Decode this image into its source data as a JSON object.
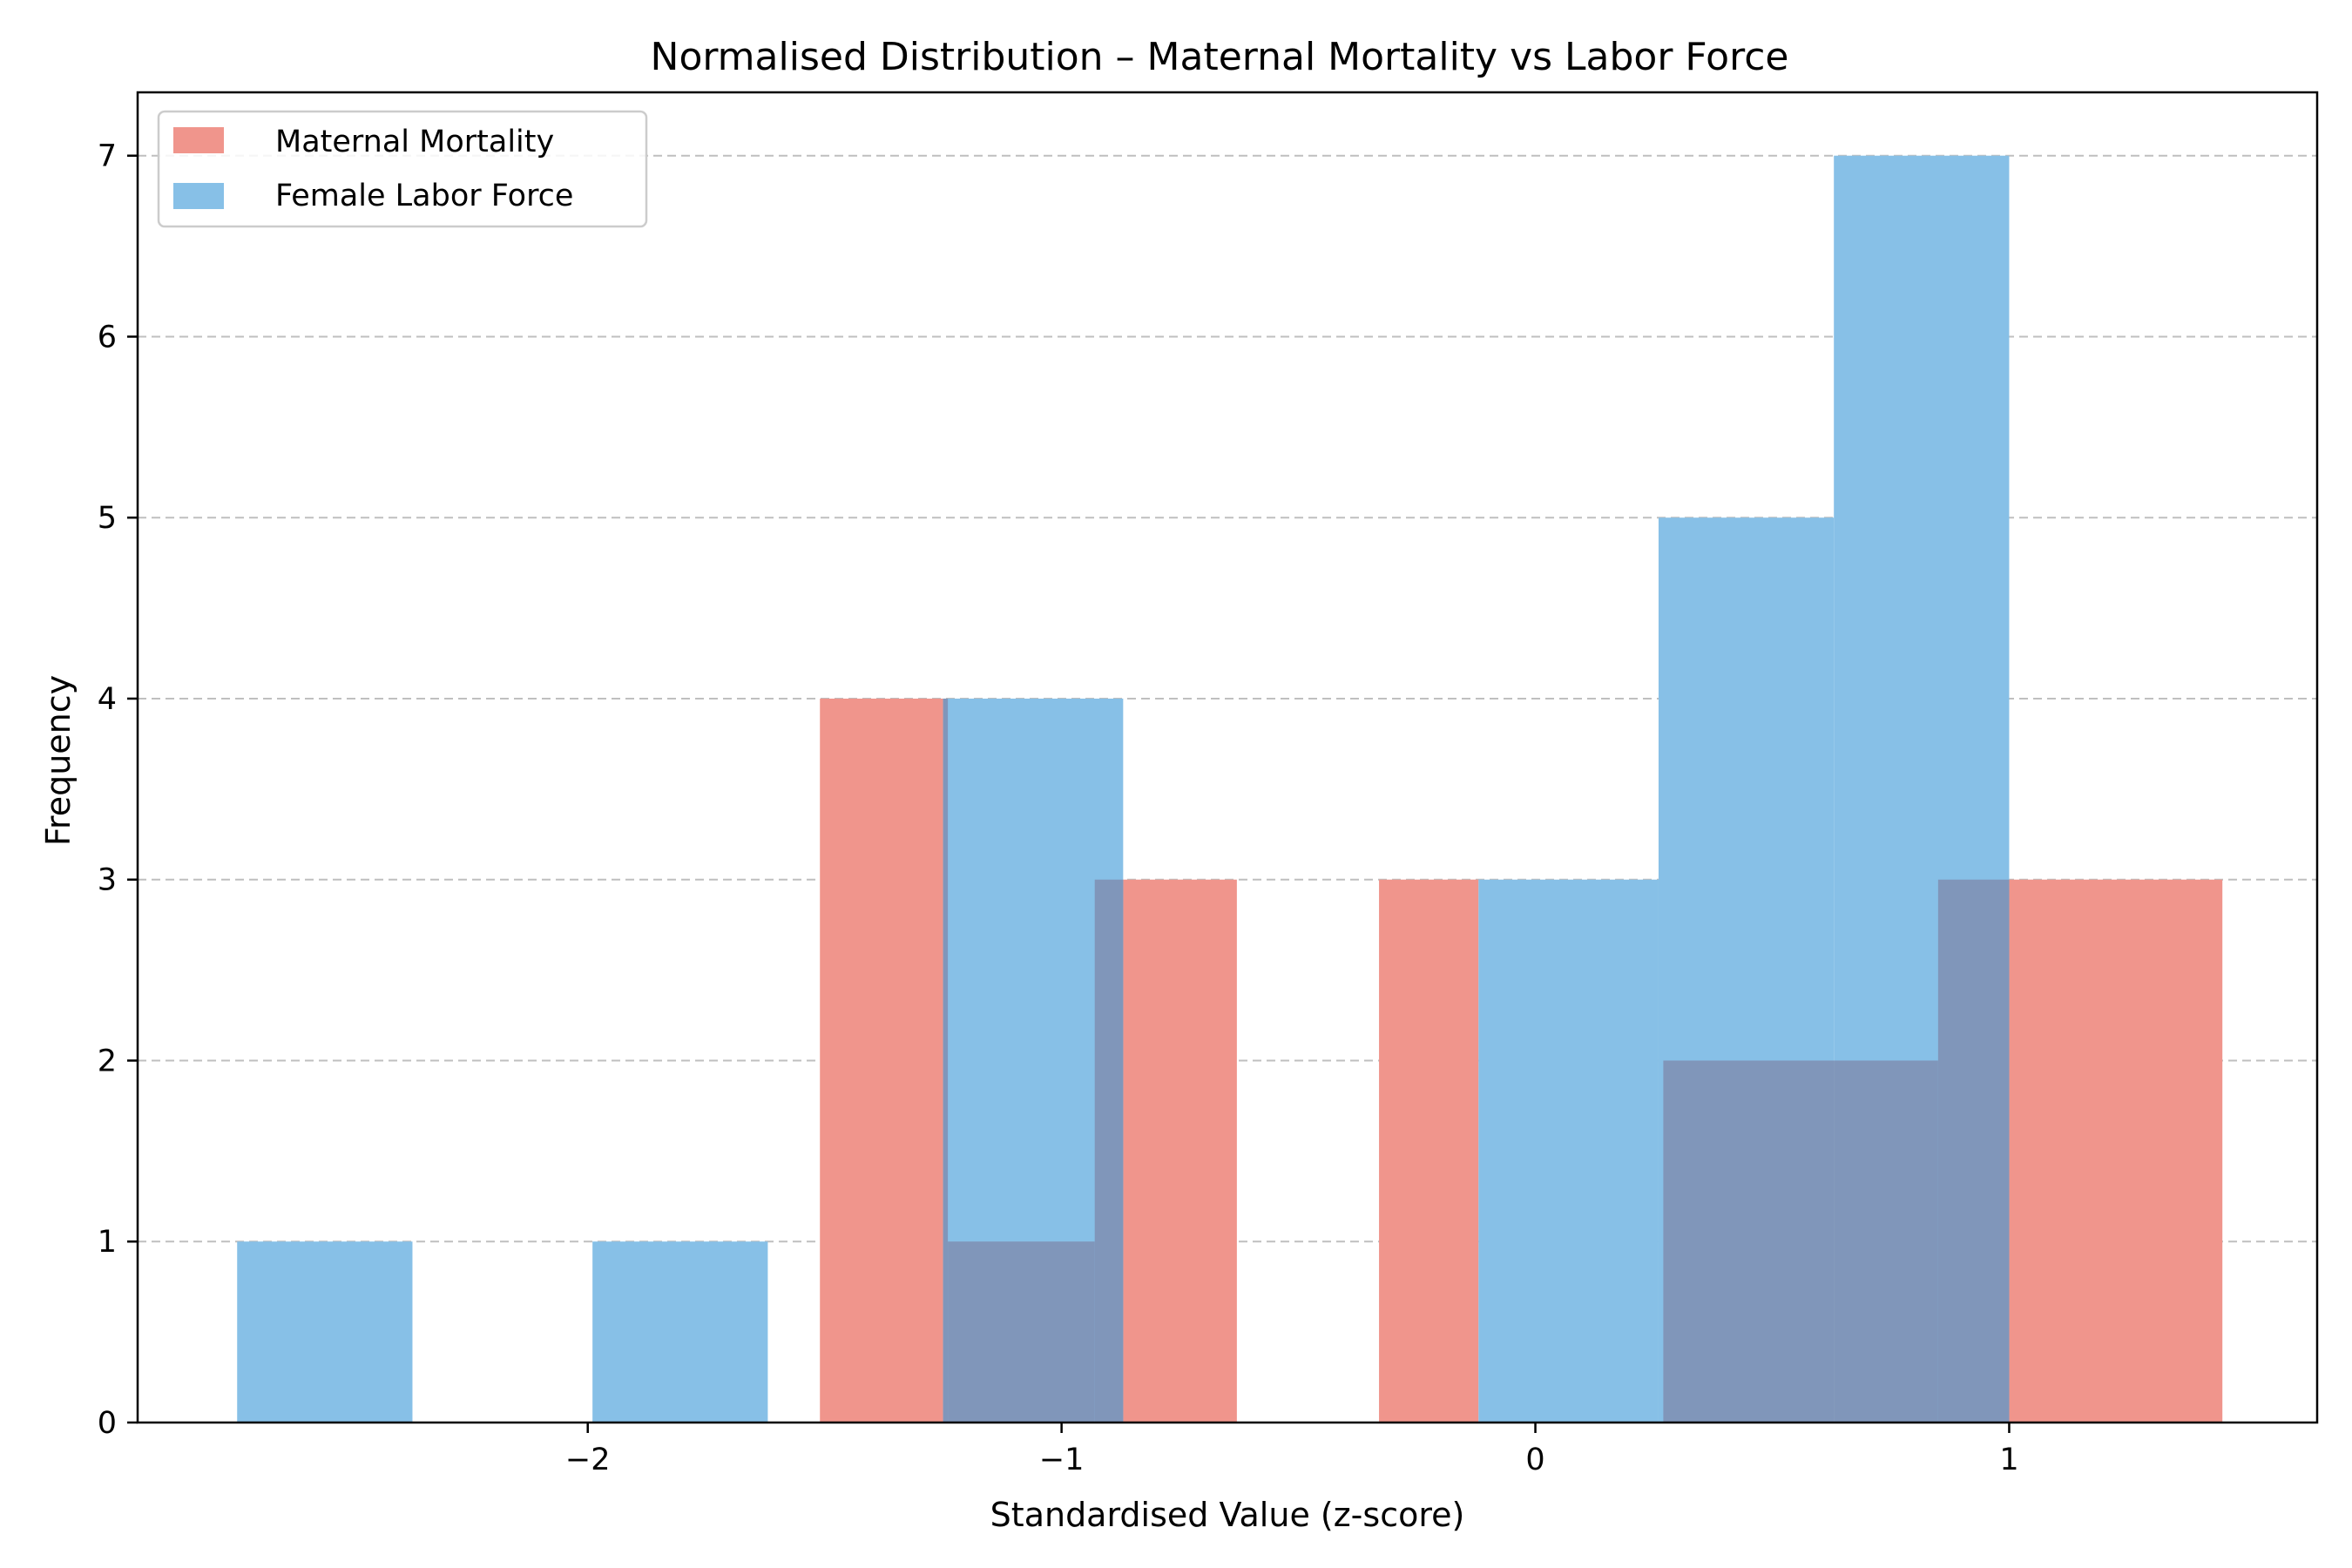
{
  "chart_data": {
    "type": "bar",
    "title": "Normalised Distribution – Maternal Mortality vs Labor Force",
    "xlabel": "Standardised Value (z-score)",
    "ylabel": "Frequency",
    "xlim": [
      -2.95,
      1.65
    ],
    "ylim": [
      0,
      7.35
    ],
    "x_ticks": [
      -2,
      -1,
      0,
      1
    ],
    "x_tick_labels": [
      "−2",
      "−1",
      "0",
      "1"
    ],
    "y_ticks": [
      0,
      1,
      2,
      3,
      4,
      5,
      6,
      7
    ],
    "y_tick_labels": [
      "0",
      "1",
      "2",
      "3",
      "4",
      "5",
      "6",
      "7"
    ],
    "grid": "y-dashed",
    "legend_position": "top-left",
    "overlap_color": "#8096BA",
    "series": [
      {
        "name": "Maternal Mortality",
        "color": "#F0958C",
        "bins": [
          {
            "start": -1.51,
            "end": -1.24,
            "count": 4
          },
          {
            "start": -1.24,
            "end": -0.93,
            "count": 1
          },
          {
            "start": -0.93,
            "end": -0.63,
            "count": 3
          },
          {
            "start": -0.63,
            "end": -0.33,
            "count": 0
          },
          {
            "start": -0.33,
            "end": -0.12,
            "count": 3
          },
          {
            "start": -0.12,
            "end": 0.27,
            "count": 0
          },
          {
            "start": 0.27,
            "end": 0.85,
            "count": 2
          },
          {
            "start": 0.85,
            "end": 1.45,
            "count": 3
          }
        ]
      },
      {
        "name": "Female Labor Force",
        "color": "#87C0E7",
        "bins": [
          {
            "start": -2.74,
            "end": -2.37,
            "count": 1
          },
          {
            "start": -2.37,
            "end": -1.99,
            "count": 0
          },
          {
            "start": -1.99,
            "end": -1.62,
            "count": 1
          },
          {
            "start": -1.62,
            "end": -1.25,
            "count": 0
          },
          {
            "start": -1.25,
            "end": -0.87,
            "count": 4
          },
          {
            "start": -0.87,
            "end": -0.5,
            "count": 0
          },
          {
            "start": -0.5,
            "end": -0.12,
            "count": 0
          },
          {
            "start": -0.12,
            "end": 0.26,
            "count": 3
          },
          {
            "start": 0.26,
            "end": 0.63,
            "count": 5
          },
          {
            "start": 0.63,
            "end": 1.0,
            "count": 7
          }
        ]
      }
    ]
  }
}
